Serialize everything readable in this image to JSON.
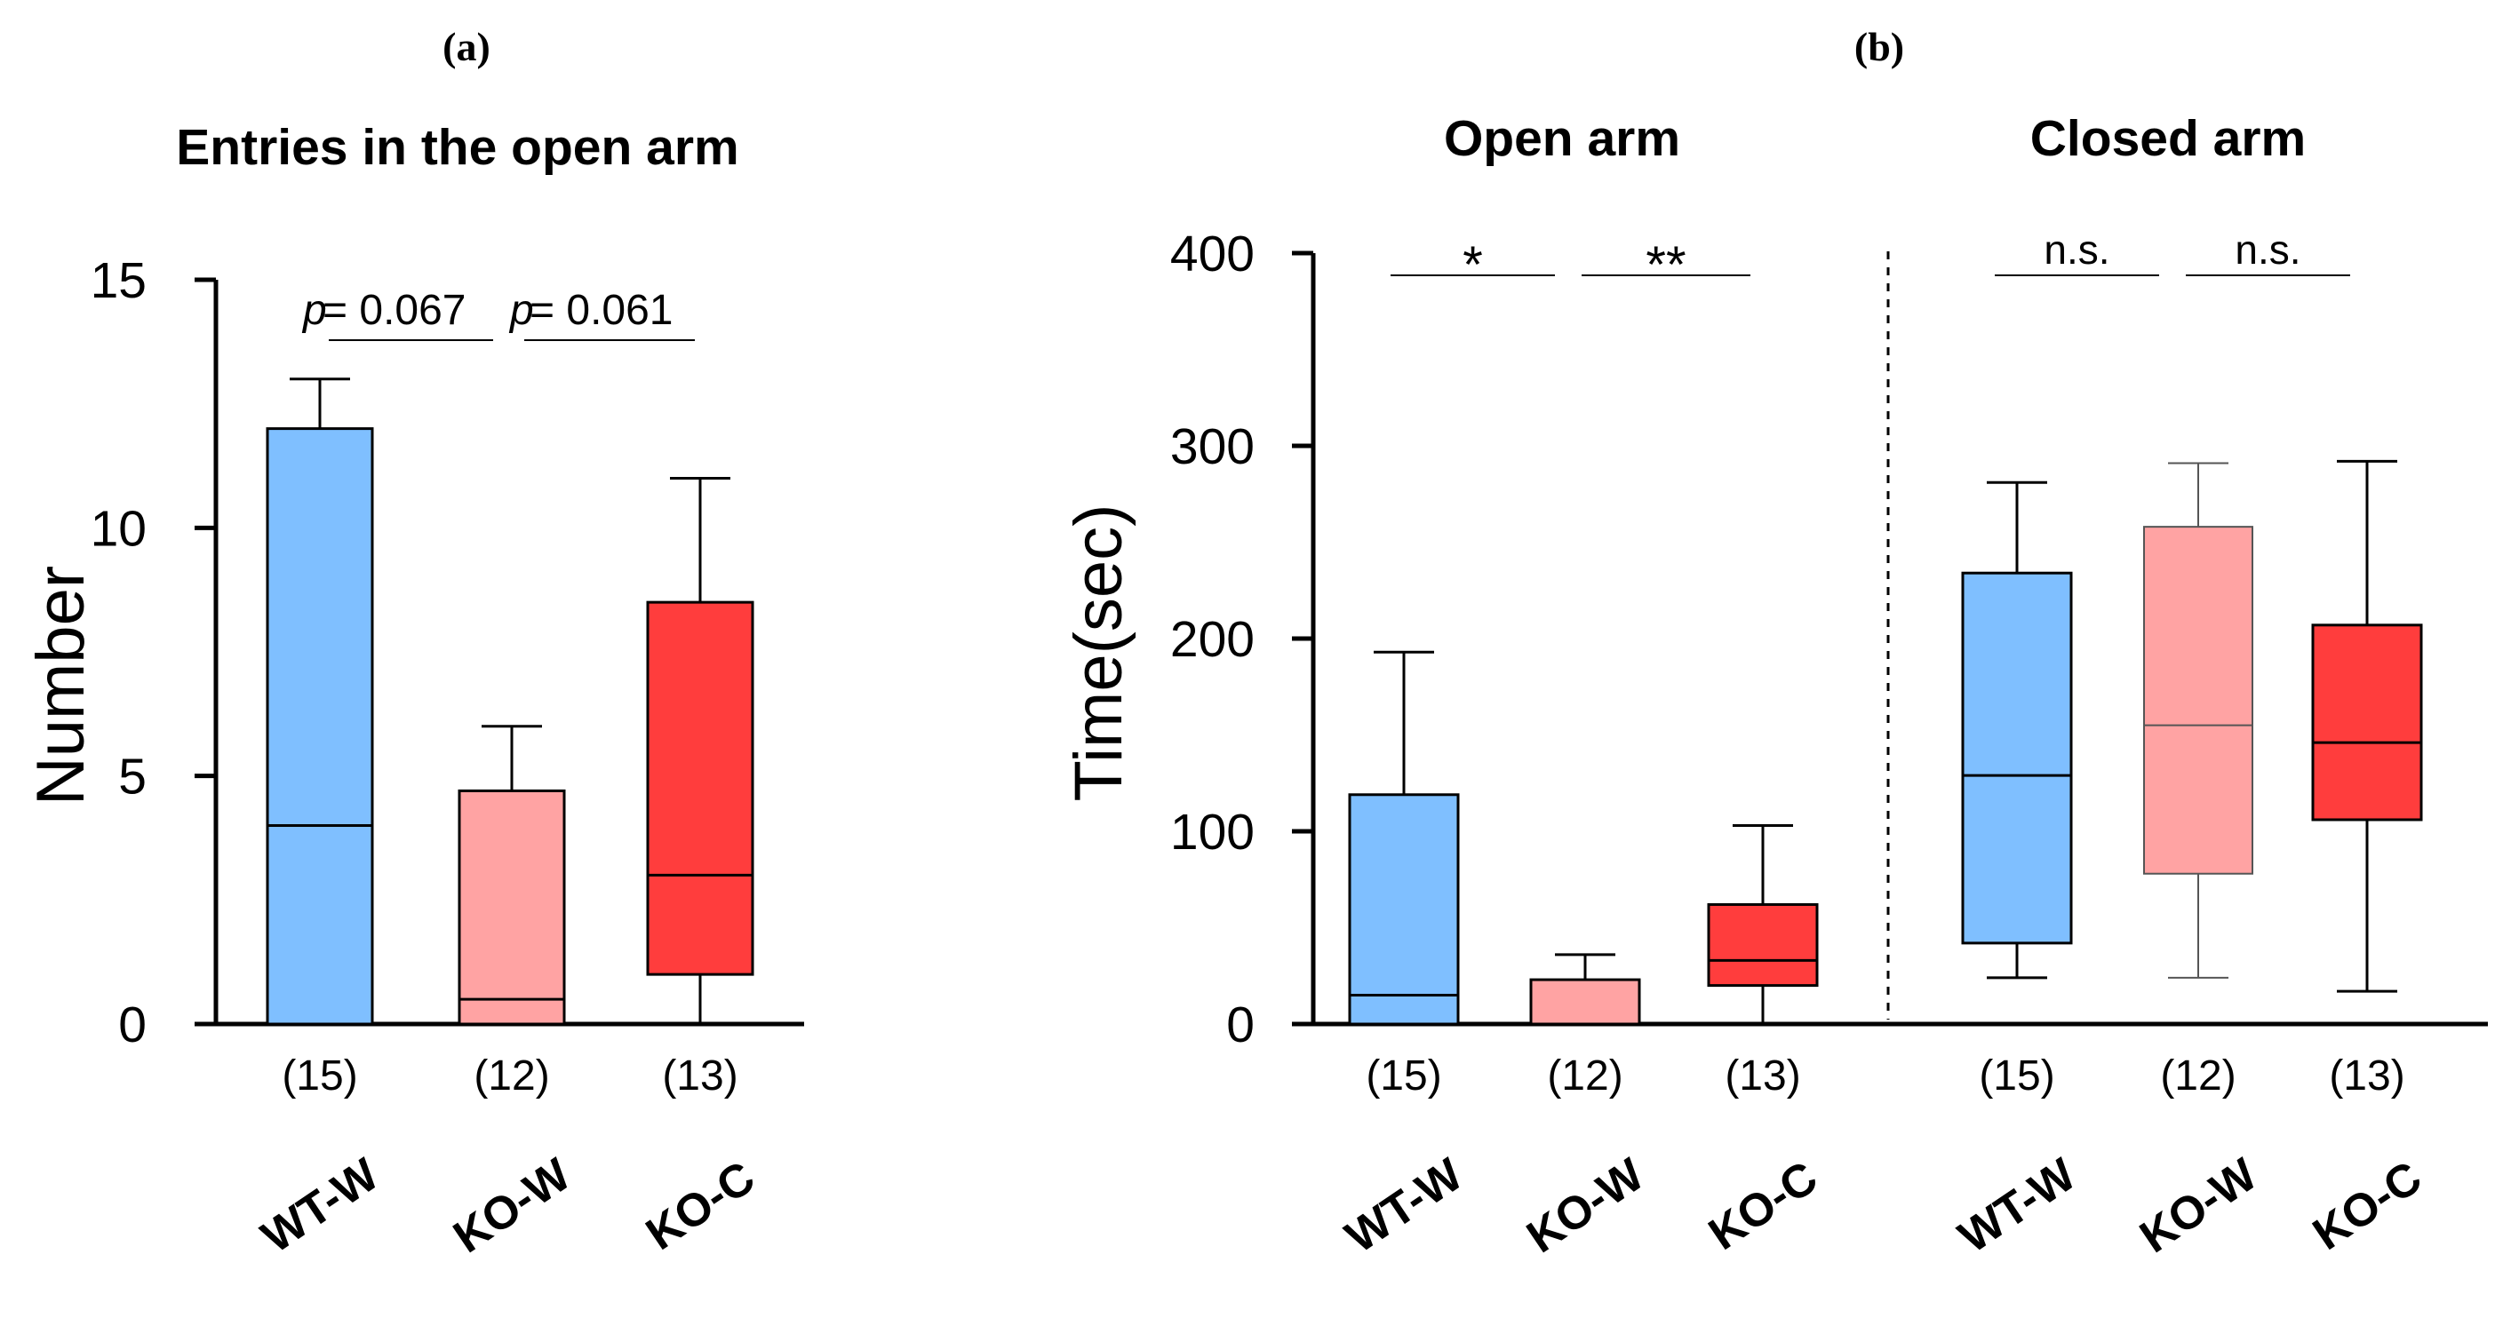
{
  "panels": {
    "a_label": "(a)",
    "b_label": "(b)"
  },
  "chart_data": [
    {
      "type": "box",
      "panel": "(a)",
      "title": "Entries in the open arm",
      "ylabel": "Number",
      "ylim": [
        0,
        15
      ],
      "yticks": [
        0,
        5,
        10,
        15
      ],
      "ytick_labels": [
        "0",
        "5",
        "10",
        "15"
      ],
      "categories": [
        "WT-W",
        "KO-W",
        "KO-C"
      ],
      "n_labels": [
        "(15)",
        "(12)",
        "(13)"
      ],
      "colors": [
        "#7fbfff",
        "#ffa3a3",
        "#ff3d3d"
      ],
      "boxes": [
        {
          "group": "WT-W",
          "whisker_low": 0,
          "q1": 0,
          "median": 4,
          "q3": 12,
          "whisker_high": 13
        },
        {
          "group": "KO-W",
          "whisker_low": 0,
          "q1": 0,
          "median": 0.5,
          "q3": 4.7,
          "whisker_high": 6
        },
        {
          "group": "KO-C",
          "whisker_low": 0,
          "q1": 1,
          "median": 3,
          "q3": 8.5,
          "whisker_high": 11
        }
      ],
      "comparisons": [
        {
          "between": [
            "WT-W",
            "KO-W"
          ],
          "p_prefix": "p",
          "p_value": "= 0.067"
        },
        {
          "between": [
            "KO-W",
            "KO-C"
          ],
          "p_prefix": "p",
          "p_value": "= 0.061"
        }
      ]
    },
    {
      "type": "box",
      "panel": "(b)",
      "ylabel": "Time(sec)",
      "ylim": [
        0,
        400
      ],
      "yticks": [
        0,
        100,
        200,
        300,
        400
      ],
      "ytick_labels": [
        "0",
        "100",
        "200",
        "300",
        "400"
      ],
      "groups": [
        {
          "title": "Open arm",
          "categories": [
            "WT-W",
            "KO-W",
            "KO-C"
          ],
          "n_labels": [
            "(15)",
            "(12)",
            "(13)"
          ],
          "colors": [
            "#7fbfff",
            "#ffa3a3",
            "#ff3d3d"
          ],
          "boxes": [
            {
              "group": "WT-W",
              "whisker_low": 0,
              "q1": 0,
              "median": 15,
              "q3": 119,
              "whisker_high": 193
            },
            {
              "group": "KO-W",
              "whisker_low": 0,
              "q1": 0,
              "median": 0,
              "q3": 23,
              "whisker_high": 36
            },
            {
              "group": "KO-C",
              "whisker_low": 0,
              "q1": 20,
              "median": 33,
              "q3": 62,
              "whisker_high": 103
            }
          ],
          "comparisons": [
            {
              "between": [
                "WT-W",
                "KO-W"
              ],
              "label": "*"
            },
            {
              "between": [
                "KO-W",
                "KO-C"
              ],
              "label": "**"
            }
          ]
        },
        {
          "title": "Closed arm",
          "categories": [
            "WT-W",
            "KO-W",
            "KO-C"
          ],
          "n_labels": [
            "(15)",
            "(12)",
            "(13)"
          ],
          "colors": [
            "#7fbfff",
            "#ffa3a3",
            "#ff3d3d"
          ],
          "boxes": [
            {
              "group": "WT-W",
              "whisker_low": 24,
              "q1": 42,
              "median": 129,
              "q3": 234,
              "whisker_high": 281
            },
            {
              "group": "KO-W",
              "whisker_low": 24,
              "q1": 78,
              "median": 155,
              "q3": 258,
              "whisker_high": 291
            },
            {
              "group": "KO-C",
              "whisker_low": 17,
              "q1": 106,
              "median": 146,
              "q3": 207,
              "whisker_high": 292
            }
          ],
          "comparisons": [
            {
              "between": [
                "WT-W",
                "KO-W"
              ],
              "label": "n.s."
            },
            {
              "between": [
                "KO-W",
                "KO-C"
              ],
              "label": "n.s."
            }
          ]
        }
      ]
    }
  ]
}
